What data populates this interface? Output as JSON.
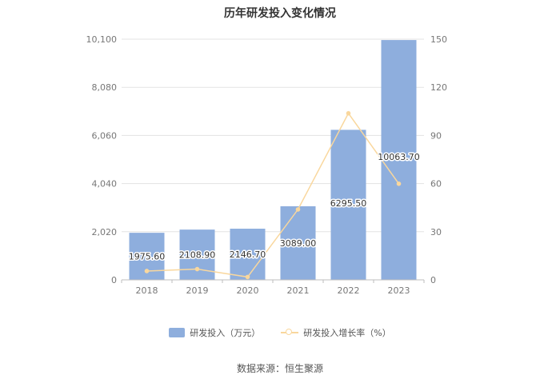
{
  "chart_data": {
    "type": "bar",
    "title": "历年研发投入变化情况",
    "categories": [
      "2018",
      "2019",
      "2020",
      "2021",
      "2022",
      "2023"
    ],
    "series": [
      {
        "name": "研发投入（万元）",
        "type": "bar",
        "axis": "left",
        "color": "#8eaedd",
        "values": [
          1975.6,
          2108.9,
          2146.7,
          3089.0,
          6295.5,
          10063.7
        ],
        "labels": [
          "1975.60",
          "2108.90",
          "2146.70",
          "3089.00",
          "6295.50",
          "10063.70"
        ]
      },
      {
        "name": "研发投入增长率（%）",
        "type": "line",
        "axis": "right",
        "color": "#f9d79d",
        "values": [
          5.5,
          6.7,
          1.8,
          43.9,
          103.8,
          59.9
        ]
      }
    ],
    "y_left": {
      "ticks": [
        "0",
        "2,020",
        "4,040",
        "6,060",
        "8,080",
        "10,100"
      ],
      "ylim": [
        0,
        10100
      ]
    },
    "y_right": {
      "ticks": [
        "0",
        "30",
        "60",
        "90",
        "120",
        "150"
      ],
      "ylim": [
        0,
        150
      ]
    },
    "grid": true,
    "legend_position": "bottom-center"
  },
  "source": "数据来源：恒生聚源"
}
